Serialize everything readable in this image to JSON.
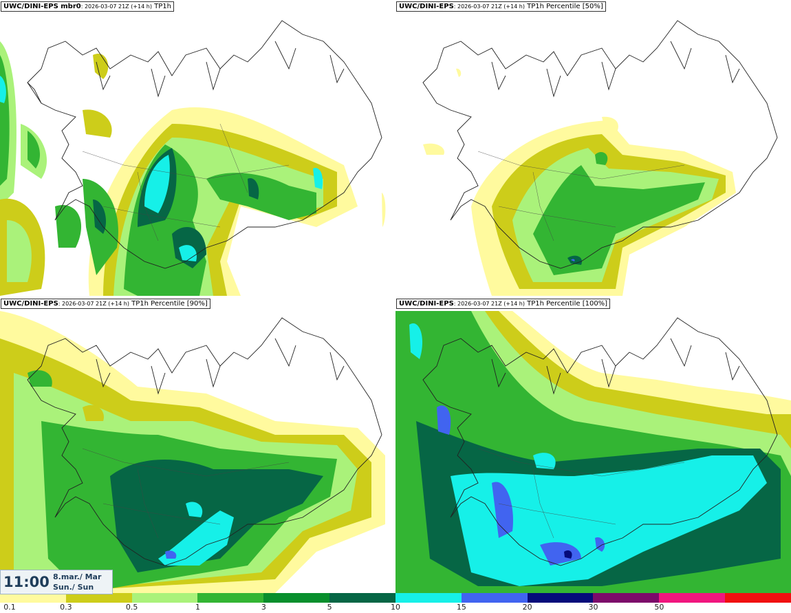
{
  "panels": [
    {
      "model": "UWC/DINI-EPS mbr0",
      "run": ": 2026-03-07 21Z (+14 h)",
      "field": " TP1h"
    },
    {
      "model": "UWC/DINI-EPS",
      "run": ": 2026-03-07 21Z (+14 h)",
      "field": " TP1h Percentile [50%]"
    },
    {
      "model": "UWC/DINI-EPS",
      "run": ": 2026-03-07 21Z (+14 h)",
      "field": " TP1h Percentile [90%]"
    },
    {
      "model": "UWC/DINI-EPS",
      "run": ": 2026-03-07 21Z (+14 h)",
      "field": " TP1h Percentile [100%]"
    }
  ],
  "valid_time": {
    "time": "11:00",
    "date_line1": "8.mar./ Mar",
    "date_line2": "Sun./ Sun"
  },
  "legend": {
    "levels": [
      "0.1",
      "0.3",
      "0.5",
      "1",
      "3",
      "5",
      "10",
      "15",
      "20",
      "30",
      "50"
    ],
    "colors": [
      "#fffa9e",
      "#cdcd1a",
      "#aaf27a",
      "#33b533",
      "#088f2d",
      "#066645",
      "#16f0e8",
      "#4164f0",
      "#050b7a",
      "#7c0a6a",
      "#f0167e",
      "#f01010"
    ]
  }
}
